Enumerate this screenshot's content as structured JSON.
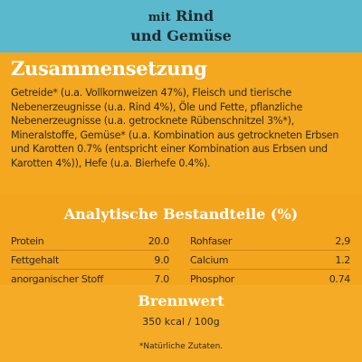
{
  "banner": {
    "line1_prefix": "mit",
    "line1_main": "Rind",
    "line2": "und Gemüse"
  },
  "composition": {
    "title": "Zusammensetzung",
    "text": "Getreide* (u.a. Vollkornweizen 47%), Fleisch und tierische Nebenerzeugnisse (u.a. Rind 4%), Öle und Fette, pflanzliche Nebenerzeugnisse (u.a. getrocknete Rübenschnitzel 3%*), Mineralstoffe, Gemüse* (u.a. Kombination aus getrockneten Erbsen und Karotten 0.7% (entspricht einer Kombination aus Erbsen und Karotten 4%)), Hefe (u.a. Bierhefe 0.4%)."
  },
  "analysis": {
    "title": "Analytische Bestandteile (%)",
    "left": [
      {
        "label": "Protein",
        "value": "20.0"
      },
      {
        "label": "Fettgehalt",
        "value": "9.0"
      },
      {
        "label": "anorganischer Stoff",
        "value": "7.0"
      }
    ],
    "right": [
      {
        "label": "Rohfaser",
        "value": "2,9"
      },
      {
        "label": "Calcium",
        "value": "1.2"
      },
      {
        "label": "Phosphor",
        "value": "0.74"
      }
    ]
  },
  "energy": {
    "title": "Brennwert",
    "value": "350 kcal / 100g"
  },
  "footnote": "*Natürliche Zutaten."
}
